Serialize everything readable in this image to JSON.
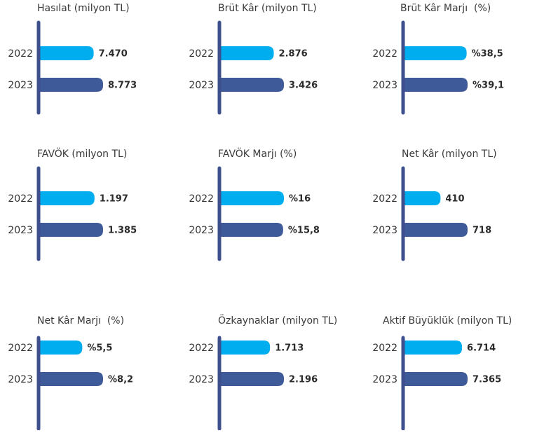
{
  "chart_data": [
    {
      "type": "bar",
      "title": "Hasılat (milyon TL)",
      "categories": [
        "2022",
        "2023"
      ],
      "values": [
        7470,
        8773
      ],
      "value_labels": [
        "7.470",
        "8.773"
      ],
      "colors": [
        "#00adef",
        "#3e5a98"
      ]
    },
    {
      "type": "bar",
      "title": "Brüt Kâr (milyon TL)",
      "categories": [
        "2022",
        "2023"
      ],
      "values": [
        2876,
        3426
      ],
      "value_labels": [
        "2.876",
        "3.426"
      ],
      "colors": [
        "#00adef",
        "#3e5a98"
      ]
    },
    {
      "type": "bar",
      "title": "Brüt Kâr Marjı  (%)",
      "categories": [
        "2022",
        "2023"
      ],
      "values": [
        38.5,
        39.1
      ],
      "value_labels": [
        "%38,5",
        "%39,1"
      ],
      "colors": [
        "#00adef",
        "#3e5a98"
      ]
    },
    {
      "type": "bar",
      "title": "FAVÖK (milyon TL)",
      "categories": [
        "2022",
        "2023"
      ],
      "values": [
        1197,
        1385
      ],
      "value_labels": [
        "1.197",
        "1.385"
      ],
      "colors": [
        "#00adef",
        "#3e5a98"
      ]
    },
    {
      "type": "bar",
      "title": "FAVÖK Marjı (%)",
      "categories": [
        "2022",
        "2023"
      ],
      "values": [
        16,
        15.8
      ],
      "value_labels": [
        "%16",
        "%15,8"
      ],
      "colors": [
        "#00adef",
        "#3e5a98"
      ]
    },
    {
      "type": "bar",
      "title": "Net Kâr (milyon TL)",
      "categories": [
        "2022",
        "2023"
      ],
      "values": [
        410,
        718
      ],
      "value_labels": [
        "410",
        "718"
      ],
      "colors": [
        "#00adef",
        "#3e5a98"
      ]
    },
    {
      "type": "bar",
      "title": "Net Kâr Marjı  (%)",
      "categories": [
        "2022",
        "2023"
      ],
      "values": [
        5.5,
        8.2
      ],
      "value_labels": [
        "%5,5",
        "%8,2"
      ],
      "colors": [
        "#00adef",
        "#3e5a98"
      ]
    },
    {
      "type": "bar",
      "title": "Özkaynaklar (milyon TL)",
      "categories": [
        "2022",
        "2023"
      ],
      "values": [
        1713,
        2196
      ],
      "value_labels": [
        "1.713",
        "2.196"
      ],
      "colors": [
        "#00adef",
        "#3e5a98"
      ]
    },
    {
      "type": "bar",
      "title": "Aktif Büyüklük (milyon TL)",
      "categories": [
        "2022",
        "2023"
      ],
      "values": [
        6714,
        7365
      ],
      "value_labels": [
        "6.714",
        "7.365"
      ],
      "colors": [
        "#00adef",
        "#3e5a98"
      ]
    }
  ]
}
